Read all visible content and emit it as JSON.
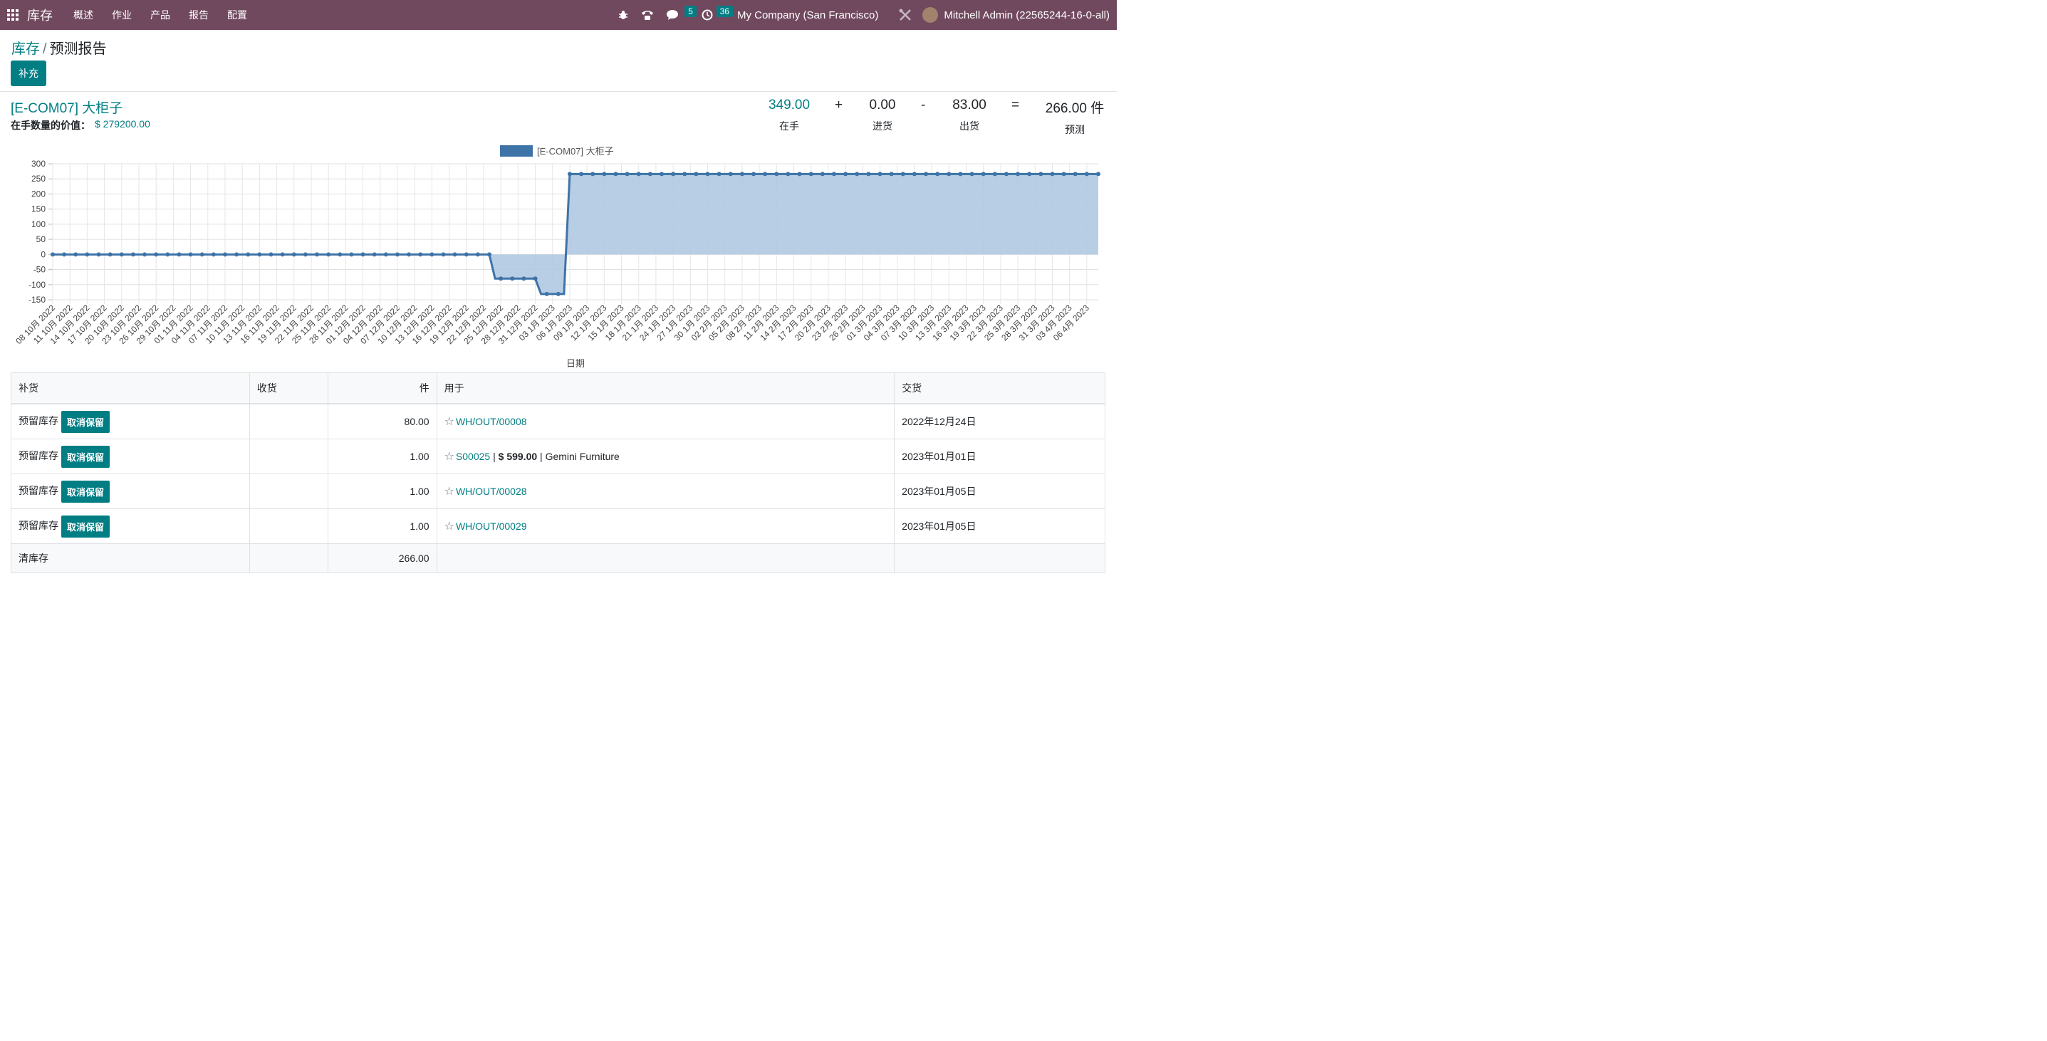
{
  "navbar": {
    "app_name": "库存",
    "menus": [
      "概述",
      "作业",
      "产品",
      "报告",
      "配置"
    ],
    "messages_count": "5",
    "activities_count": "36",
    "company": "My Company (San Francisco)",
    "user": "Mitchell Admin (22565244-16-0-all)"
  },
  "breadcrumb": {
    "parent": "库存",
    "separator": "/",
    "current": "预测报告"
  },
  "buttons": {
    "replenish": "补充"
  },
  "product": {
    "name": "[E-COM07] 大柜子",
    "value_label": "在手数量的价值：",
    "value": "$ 279200.00"
  },
  "kpis": {
    "on_hand": {
      "value": "349.00",
      "label": "在手"
    },
    "plus": "+",
    "incoming": {
      "value": "0.00",
      "label": "进货"
    },
    "minus": "-",
    "outgoing": {
      "value": "83.00",
      "label": "出货"
    },
    "equals": "=",
    "forecast": {
      "value": "266.00 件",
      "label": "预测"
    }
  },
  "colors": {
    "navbar": "#71495f",
    "accent": "#017e84",
    "series_line": "#3e73a7",
    "series_fill": "#b0c9e1"
  },
  "chart_data": {
    "type": "area",
    "legend": "[E-COM07] 大柜子",
    "xlabel": "日期",
    "ylim": [
      -150,
      300
    ],
    "yticks": [
      300,
      250,
      200,
      150,
      100,
      50,
      0,
      -50,
      -100,
      -150
    ],
    "categories": [
      "08 10月 2022",
      "11 10月 2022",
      "14 10月 2022",
      "17 10月 2022",
      "20 10月 2022",
      "23 10月 2022",
      "26 10月 2022",
      "29 10月 2022",
      "01 11月 2022",
      "04 11月 2022",
      "07 11月 2022",
      "10 11月 2022",
      "13 11月 2022",
      "16 11月 2022",
      "19 11月 2022",
      "22 11月 2022",
      "25 11月 2022",
      "28 11月 2022",
      "01 12月 2022",
      "04 12月 2022",
      "07 12月 2022",
      "10 12月 2022",
      "13 12月 2022",
      "16 12月 2022",
      "19 12月 2022",
      "22 12月 2022",
      "25 12月 2022",
      "28 12月 2022",
      "31 12月 2022",
      "03 1月 2023",
      "06 1月 2023",
      "09 1月 2023",
      "12 1月 2023",
      "15 1月 2023",
      "18 1月 2023",
      "21 1月 2023",
      "24 1月 2023",
      "27 1月 2023",
      "30 1月 2023",
      "02 2月 2023",
      "05 2月 2023",
      "08 2月 2023",
      "11 2月 2023",
      "14 2月 2023",
      "17 2月 2023",
      "20 2月 2023",
      "23 2月 2023",
      "26 2月 2023",
      "01 3月 2023",
      "04 3月 2023",
      "07 3月 2023",
      "10 3月 2023",
      "13 3月 2023",
      "16 3月 2023",
      "19 3月 2023",
      "22 3月 2023",
      "25 3月 2023",
      "28 3月 2023",
      "31 3月 2023",
      "03 4月 2023",
      "06 4月 2023"
    ],
    "x_start": "2022-10-08",
    "x_end": "2023-04-08",
    "series": [
      {
        "name": "[E-COM07] 大柜子",
        "steps": [
          {
            "from": "2022-10-08",
            "to": "2022-12-23",
            "value": 0
          },
          {
            "from": "2022-12-24",
            "to": "2022-12-31",
            "value": -80
          },
          {
            "from": "2023-01-01",
            "to": "2023-01-05",
            "value": -131
          },
          {
            "from": "2023-01-06",
            "to": "2023-04-08",
            "value": 266
          }
        ]
      }
    ],
    "grid": true
  },
  "table": {
    "headers": [
      "补货",
      "收货",
      "件",
      "用于",
      "交货"
    ],
    "rows": [
      {
        "replenishment": "预留库存",
        "action": "取消保留",
        "receipt": "",
        "qty": "80.00",
        "ref": "WH/OUT/00008",
        "extra": "",
        "date": "2022年12月24日"
      },
      {
        "replenishment": "预留库存",
        "action": "取消保留",
        "receipt": "",
        "qty": "1.00",
        "ref": "S00025",
        "extra_sep": " | ",
        "extra_price": "$ 599.00",
        "extra_sep2": " | ",
        "extra_partner": "Gemini Furniture",
        "date": "2023年01月01日"
      },
      {
        "replenishment": "预留库存",
        "action": "取消保留",
        "receipt": "",
        "qty": "1.00",
        "ref": "WH/OUT/00028",
        "extra": "",
        "date": "2023年01月05日"
      },
      {
        "replenishment": "预留库存",
        "action": "取消保留",
        "receipt": "",
        "qty": "1.00",
        "ref": "WH/OUT/00029",
        "extra": "",
        "date": "2023年01月05日"
      }
    ],
    "summary": {
      "label": "清库存",
      "qty": "266.00"
    }
  }
}
